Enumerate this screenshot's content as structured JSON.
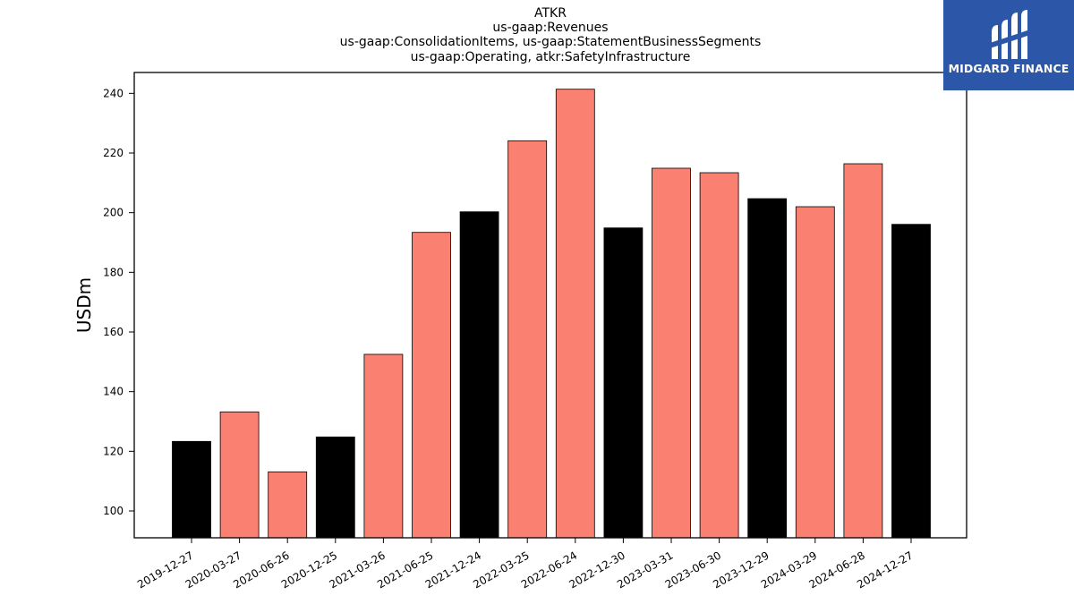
{
  "chart_data": {
    "type": "bar",
    "title_lines": [
      "ATKR",
      "us-gaap:Revenues",
      "us-gaap:ConsolidationItems, us-gaap:StatementBusinessSegments",
      "us-gaap:Operating, atkr:SafetyInfrastructure"
    ],
    "xlabel": "",
    "ylabel": "USDm",
    "ylim": [
      91,
      247
    ],
    "yticks": [
      100,
      120,
      140,
      160,
      180,
      200,
      220,
      240
    ],
    "categories": [
      "2019-12-27",
      "2020-03-27",
      "2020-06-26",
      "2020-12-25",
      "2021-03-26",
      "2021-06-25",
      "2021-12-24",
      "2022-03-25",
      "2022-06-24",
      "2022-12-30",
      "2023-03-31",
      "2023-06-30",
      "2023-12-29",
      "2024-03-29",
      "2024-06-28",
      "2024-12-27"
    ],
    "values": [
      123.3,
      133.2,
      113.1,
      124.8,
      152.5,
      193.4,
      200.3,
      224.1,
      241.4,
      194.9,
      214.9,
      213.4,
      204.7,
      202.0,
      216.4,
      196.1
    ],
    "bar_colors": [
      "#000000",
      "#fa8072",
      "#fa8072",
      "#000000",
      "#fa8072",
      "#fa8072",
      "#000000",
      "#fa8072",
      "#fa8072",
      "#000000",
      "#fa8072",
      "#fa8072",
      "#000000",
      "#fa8072",
      "#fa8072",
      "#000000"
    ],
    "edge_color": "#000000",
    "grid": false,
    "legend": "none"
  },
  "logo": {
    "text": "MIDGARD FINANCE",
    "background": "#2c56a8",
    "foreground": "#ffffff",
    "icon": "midgard-logo-icon"
  }
}
